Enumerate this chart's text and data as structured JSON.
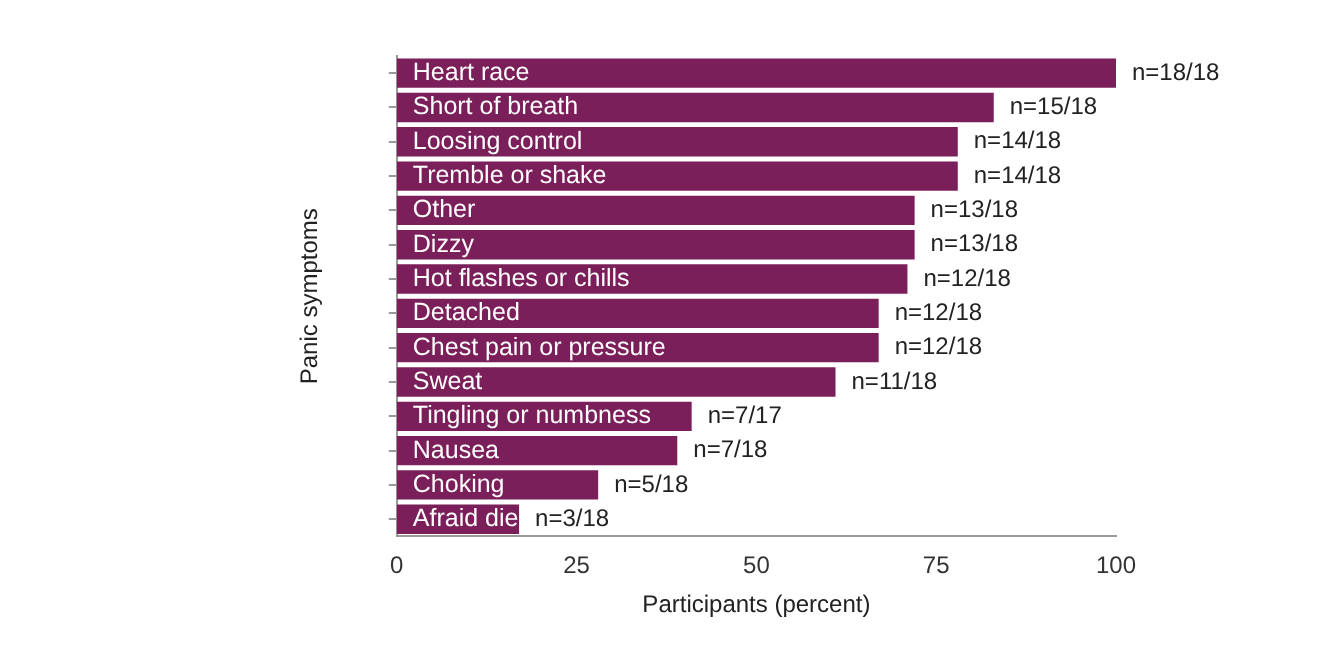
{
  "chart_data": {
    "type": "bar",
    "orientation": "horizontal",
    "xlabel": "Participants (percent)",
    "ylabel": "Panic symptoms",
    "categories": [
      "Heart race",
      "Short of breath",
      "Loosing control",
      "Tremble or shake",
      "Other",
      "Dizzy",
      "Hot flashes or chills",
      "Detached",
      "Chest pain or pressure",
      "Sweat",
      "Tingling or numbness",
      "Nausea",
      "Choking",
      "Afraid die"
    ],
    "values": [
      100,
      83,
      78,
      78,
      72,
      72,
      71,
      67,
      67,
      61,
      41,
      39,
      28,
      17
    ],
    "value_labels": [
      "n=18/18",
      "n=15/18",
      "n=14/18",
      "n=14/18",
      "n=13/18",
      "n=13/18",
      "n=12/18",
      "n=12/18",
      "n=12/18",
      "n=11/18",
      "n=7/17",
      "n=7/18",
      "n=5/18",
      "n=3/18"
    ],
    "color": "#7b1f5a",
    "xlim": [
      0,
      100
    ],
    "xticks": [
      0,
      25,
      50,
      75,
      100
    ],
    "grid": false,
    "legend": false
  }
}
